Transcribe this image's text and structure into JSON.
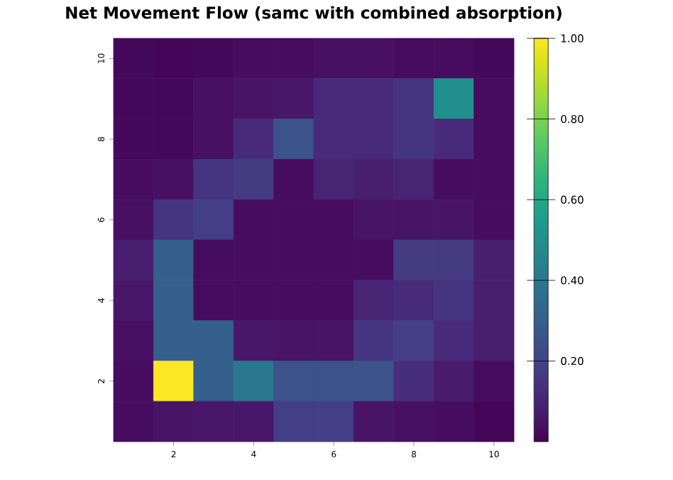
{
  "chart_data": {
    "type": "heatmap",
    "title": "Net Movement Flow (samc with combined absorption)",
    "categories": [
      null,
      "2",
      null,
      "4",
      null,
      "6",
      null,
      "8",
      null,
      "10"
    ],
    "y_categories": [
      "10",
      null,
      "8",
      null,
      "6",
      null,
      "4",
      null,
      "2",
      null
    ],
    "cells": [
      [
        0.02,
        0.01,
        0.02,
        0.03,
        0.03,
        0.04,
        0.04,
        0.03,
        0.03,
        0.02
      ],
      [
        0.02,
        0.02,
        0.04,
        0.05,
        0.06,
        0.12,
        0.12,
        0.15,
        0.5,
        0.03
      ],
      [
        0.02,
        0.02,
        0.04,
        0.12,
        0.25,
        0.12,
        0.12,
        0.15,
        0.12,
        0.03
      ],
      [
        0.03,
        0.04,
        0.15,
        0.17,
        0.03,
        0.1,
        0.08,
        0.1,
        0.03,
        0.03
      ],
      [
        0.04,
        0.15,
        0.18,
        0.03,
        0.03,
        0.03,
        0.05,
        0.05,
        0.05,
        0.03
      ],
      [
        0.08,
        0.3,
        0.03,
        0.03,
        0.03,
        0.03,
        0.03,
        0.17,
        0.17,
        0.08
      ],
      [
        0.06,
        0.3,
        0.03,
        0.03,
        0.03,
        0.03,
        0.1,
        0.12,
        0.15,
        0.08
      ],
      [
        0.04,
        0.3,
        0.3,
        0.06,
        0.05,
        0.05,
        0.15,
        0.18,
        0.12,
        0.08
      ],
      [
        0.03,
        1.0,
        0.3,
        0.4,
        0.25,
        0.25,
        0.25,
        0.13,
        0.07,
        0.03
      ],
      [
        0.03,
        0.05,
        0.06,
        0.06,
        0.18,
        0.18,
        0.05,
        0.04,
        0.03,
        0.01
      ]
    ],
    "clim": [
      0,
      1
    ],
    "cticks": [
      {
        "value": 0.2,
        "label": "0.20"
      },
      {
        "value": 0.4,
        "label": "0.40"
      },
      {
        "value": 0.6,
        "label": "0.60"
      },
      {
        "value": 0.8,
        "label": "0.80"
      },
      {
        "value": 1.0,
        "label": "1.00"
      }
    ]
  }
}
